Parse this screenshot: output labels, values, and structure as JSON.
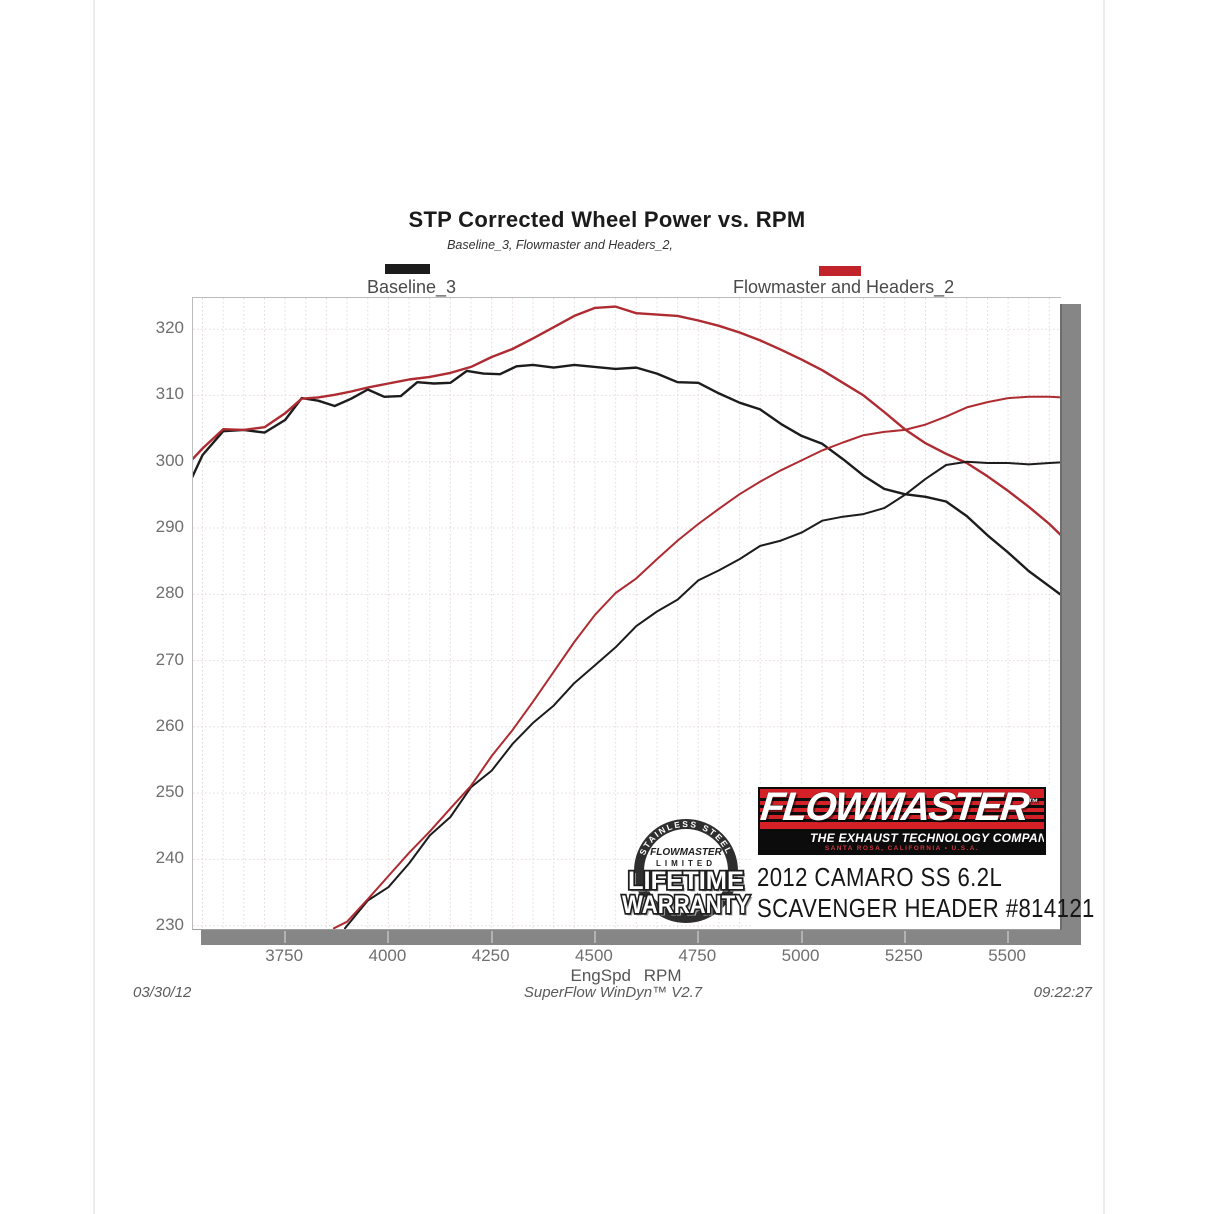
{
  "title": "STP Corrected Wheel Power vs. RPM",
  "subtitle": "Baseline_3, Flowmaster and Headers_2,",
  "legend": {
    "baseline": {
      "label": "Baseline_3",
      "color": "#1c1c1c"
    },
    "flowmaster": {
      "label": "Flowmaster and Headers_2",
      "color": "#c1232b"
    }
  },
  "footer": {
    "date": "03/30/12",
    "software": "SuperFlow WinDyn™ V2.7",
    "time": "09:22:27"
  },
  "info_box": {
    "line1": "2012 CAMARO SS 6.2L",
    "line2": "SCAVENGER HEADER #814121"
  },
  "logo": {
    "brand": "FLOWMASTER",
    "tm": "™",
    "tagline": "THE EXHAUST TECHNOLOGY COMPANY™",
    "address": "SANTA ROSA, CALIFORNIA • U.S.A.",
    "red": "#d42128",
    "black": "#0c0c0c"
  },
  "badge": {
    "arc_top": "STAINLESS STEEL",
    "brand": "FLOWMASTER",
    "limited": "LIMITED",
    "line1": "LIFETIME",
    "line2": "WARRANTY"
  },
  "chart_data": {
    "type": "line",
    "title": "STP Corrected Wheel Power vs. RPM",
    "subtitle": "Baseline_3, Flowmaster and Headers_2,",
    "xlabel": "EngSpd RPM",
    "ylabel": "",
    "xlim": [
      3527,
      5628
    ],
    "ylim": [
      229.5,
      324.7
    ],
    "x_ticks": [
      3750,
      4000,
      4250,
      4500,
      4750,
      5000,
      5250,
      5500
    ],
    "y_ticks": [
      230,
      240,
      250,
      260,
      270,
      280,
      290,
      300,
      310,
      320
    ],
    "grid": {
      "x_step": 50,
      "y_step": 10,
      "color": "#e7d9d9"
    },
    "legend_position": "top",
    "series": [
      {
        "name": "Baseline_3 (torque)",
        "color": "#1c1c1c",
        "width": 2.4,
        "points": [
          [
            3520,
            297.0
          ],
          [
            3550,
            301.0
          ],
          [
            3600,
            304.6
          ],
          [
            3650,
            304.8
          ],
          [
            3700,
            304.4
          ],
          [
            3750,
            306.3
          ],
          [
            3790,
            309.6
          ],
          [
            3830,
            309.2
          ],
          [
            3870,
            308.4
          ],
          [
            3910,
            309.5
          ],
          [
            3950,
            310.9
          ],
          [
            3990,
            309.8
          ],
          [
            4030,
            309.9
          ],
          [
            4070,
            312.0
          ],
          [
            4110,
            311.8
          ],
          [
            4150,
            311.9
          ],
          [
            4190,
            313.7
          ],
          [
            4230,
            313.3
          ],
          [
            4270,
            313.2
          ],
          [
            4310,
            314.4
          ],
          [
            4350,
            314.6
          ],
          [
            4400,
            314.2
          ],
          [
            4450,
            314.6
          ],
          [
            4500,
            314.3
          ],
          [
            4550,
            314.0
          ],
          [
            4600,
            314.2
          ],
          [
            4650,
            313.3
          ],
          [
            4700,
            312.0
          ],
          [
            4750,
            311.9
          ],
          [
            4800,
            310.3
          ],
          [
            4850,
            308.9
          ],
          [
            4900,
            307.9
          ],
          [
            4950,
            305.7
          ],
          [
            5000,
            303.9
          ],
          [
            5050,
            302.7
          ],
          [
            5100,
            300.4
          ],
          [
            5150,
            297.9
          ],
          [
            5200,
            295.9
          ],
          [
            5250,
            295.1
          ],
          [
            5300,
            294.7
          ],
          [
            5350,
            294.0
          ],
          [
            5400,
            291.8
          ],
          [
            5450,
            288.9
          ],
          [
            5500,
            286.3
          ],
          [
            5550,
            283.5
          ],
          [
            5600,
            281.2
          ],
          [
            5628,
            279.9
          ]
        ]
      },
      {
        "name": "Flowmaster and Headers_2 (torque)",
        "color": "#ad2b31",
        "width": 2.4,
        "points": [
          [
            3520,
            300.0
          ],
          [
            3550,
            302.0
          ],
          [
            3600,
            304.9
          ],
          [
            3650,
            304.8
          ],
          [
            3700,
            305.2
          ],
          [
            3750,
            307.3
          ],
          [
            3790,
            309.5
          ],
          [
            3830,
            309.7
          ],
          [
            3870,
            310.1
          ],
          [
            3910,
            310.6
          ],
          [
            3950,
            311.2
          ],
          [
            4000,
            311.8
          ],
          [
            4050,
            312.4
          ],
          [
            4100,
            312.8
          ],
          [
            4150,
            313.4
          ],
          [
            4200,
            314.3
          ],
          [
            4250,
            315.8
          ],
          [
            4300,
            317.0
          ],
          [
            4350,
            318.6
          ],
          [
            4400,
            320.3
          ],
          [
            4450,
            322.0
          ],
          [
            4500,
            323.2
          ],
          [
            4550,
            323.4
          ],
          [
            4600,
            322.4
          ],
          [
            4650,
            322.2
          ],
          [
            4700,
            322.0
          ],
          [
            4750,
            321.3
          ],
          [
            4800,
            320.5
          ],
          [
            4850,
            319.5
          ],
          [
            4900,
            318.3
          ],
          [
            4950,
            316.9
          ],
          [
            5000,
            315.4
          ],
          [
            5050,
            313.8
          ],
          [
            5100,
            311.9
          ],
          [
            5150,
            310.0
          ],
          [
            5200,
            307.5
          ],
          [
            5250,
            304.9
          ],
          [
            5300,
            302.8
          ],
          [
            5350,
            301.2
          ],
          [
            5400,
            299.8
          ],
          [
            5450,
            297.8
          ],
          [
            5500,
            295.6
          ],
          [
            5550,
            293.2
          ],
          [
            5600,
            290.6
          ],
          [
            5628,
            288.9
          ]
        ]
      },
      {
        "name": "Baseline_3 (power)",
        "color": "#1c1c1c",
        "width": 2.0,
        "points": [
          [
            3895,
            229.6
          ],
          [
            3950,
            233.8
          ],
          [
            4000,
            235.8
          ],
          [
            4050,
            239.4
          ],
          [
            4100,
            243.6
          ],
          [
            4150,
            246.4
          ],
          [
            4200,
            250.9
          ],
          [
            4250,
            253.4
          ],
          [
            4300,
            257.4
          ],
          [
            4350,
            260.6
          ],
          [
            4400,
            263.2
          ],
          [
            4450,
            266.6
          ],
          [
            4500,
            269.3
          ],
          [
            4550,
            272.0
          ],
          [
            4600,
            275.2
          ],
          [
            4650,
            277.4
          ],
          [
            4700,
            279.2
          ],
          [
            4750,
            282.1
          ],
          [
            4800,
            283.6
          ],
          [
            4850,
            285.3
          ],
          [
            4900,
            287.3
          ],
          [
            4950,
            288.1
          ],
          [
            5000,
            289.3
          ],
          [
            5050,
            291.1
          ],
          [
            5100,
            291.7
          ],
          [
            5150,
            292.1
          ],
          [
            5200,
            293.0
          ],
          [
            5250,
            295.0
          ],
          [
            5300,
            297.4
          ],
          [
            5350,
            299.5
          ],
          [
            5400,
            300.0
          ],
          [
            5450,
            299.8
          ],
          [
            5500,
            299.8
          ],
          [
            5550,
            299.6
          ],
          [
            5600,
            299.8
          ],
          [
            5628,
            299.9
          ]
        ]
      },
      {
        "name": "Flowmaster and Headers_2 (power)",
        "color": "#ad2b31",
        "width": 2.0,
        "points": [
          [
            3868,
            229.6
          ],
          [
            3900,
            230.6
          ],
          [
            3950,
            234.0
          ],
          [
            4000,
            237.5
          ],
          [
            4050,
            241.0
          ],
          [
            4100,
            244.2
          ],
          [
            4150,
            247.7
          ],
          [
            4200,
            251.1
          ],
          [
            4250,
            255.6
          ],
          [
            4300,
            259.5
          ],
          [
            4350,
            263.8
          ],
          [
            4400,
            268.3
          ],
          [
            4450,
            272.8
          ],
          [
            4500,
            276.9
          ],
          [
            4550,
            280.2
          ],
          [
            4600,
            282.4
          ],
          [
            4650,
            285.3
          ],
          [
            4700,
            288.1
          ],
          [
            4750,
            290.6
          ],
          [
            4800,
            292.9
          ],
          [
            4850,
            295.1
          ],
          [
            4900,
            297.0
          ],
          [
            4950,
            298.7
          ],
          [
            5000,
            300.2
          ],
          [
            5050,
            301.7
          ],
          [
            5100,
            302.9
          ],
          [
            5150,
            304.0
          ],
          [
            5200,
            304.5
          ],
          [
            5250,
            304.8
          ],
          [
            5300,
            305.6
          ],
          [
            5350,
            306.8
          ],
          [
            5400,
            308.2
          ],
          [
            5450,
            309.0
          ],
          [
            5500,
            309.6
          ],
          [
            5550,
            309.8
          ],
          [
            5600,
            309.8
          ],
          [
            5628,
            309.7
          ]
        ]
      }
    ]
  }
}
